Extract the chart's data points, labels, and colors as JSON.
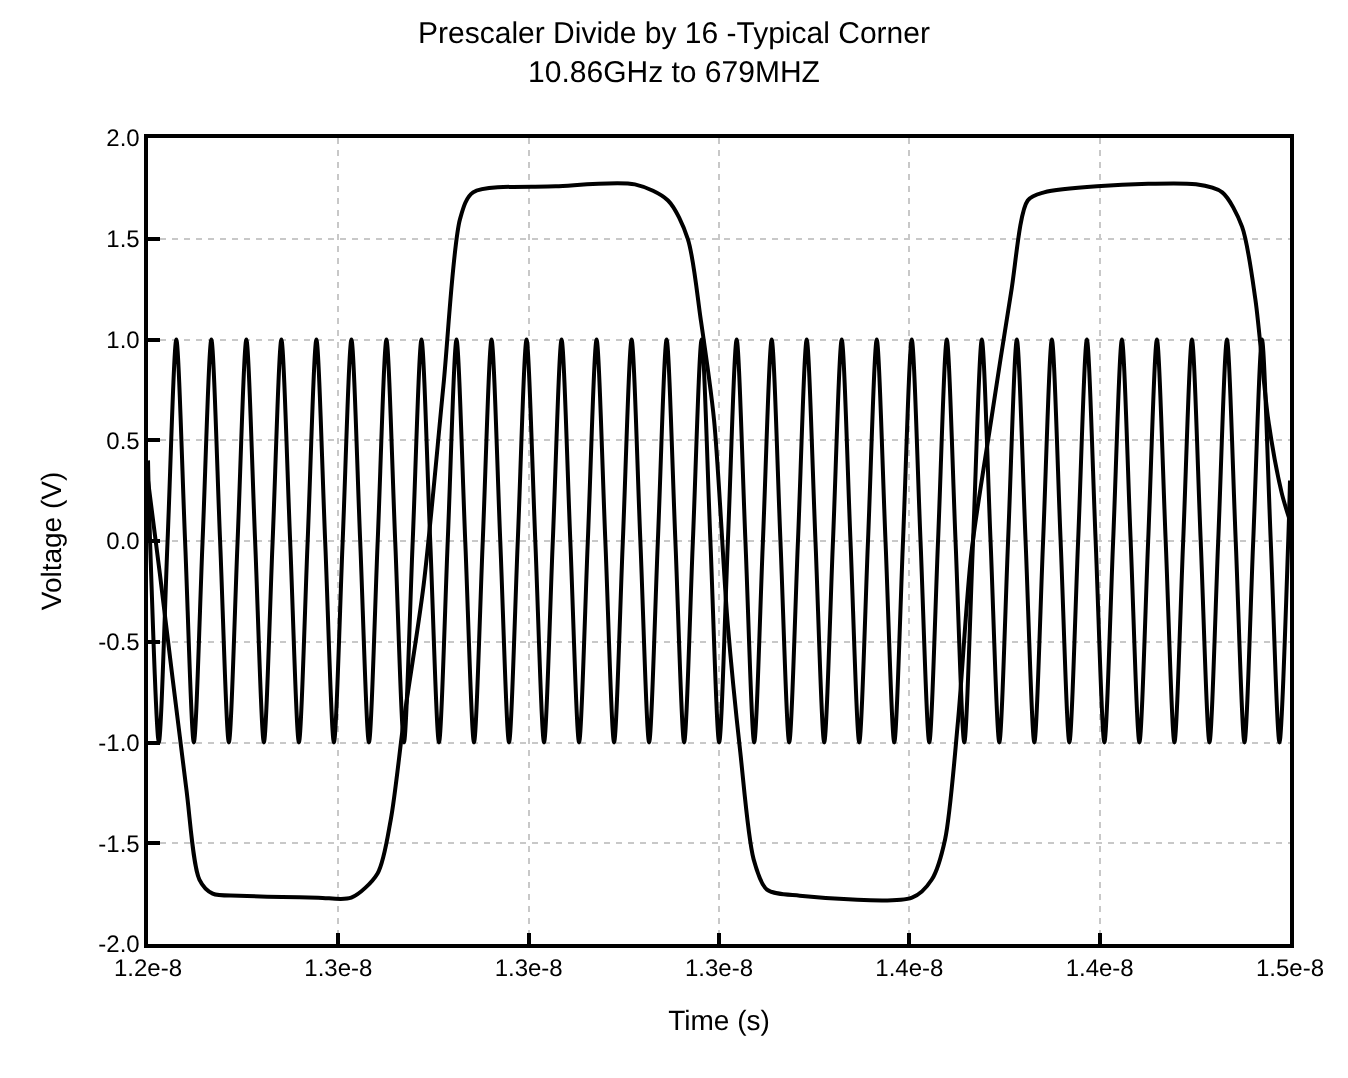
{
  "chart_data": {
    "type": "line",
    "title": "Prescaler Divide by 16 -Typical Corner",
    "subtitle": "10.86GHz to 679MHZ",
    "xlabel": "Time (s)",
    "ylabel": "Voltage (V)",
    "xlim": [
      1.2e-08,
      1.5e-08
    ],
    "xticks": [
      {
        "value": 1.2e-08,
        "label": "1.2e-8"
      },
      {
        "value": 1.25e-08,
        "label": "1.3e-8"
      },
      {
        "value": 1.3e-08,
        "label": "1.3e-8"
      },
      {
        "value": 1.35e-08,
        "label": "1.3e-8"
      },
      {
        "value": 1.4e-08,
        "label": "1.4e-8"
      },
      {
        "value": 1.45e-08,
        "label": "1.4e-8"
      },
      {
        "value": 1.5e-08,
        "label": "1.5e-8"
      }
    ],
    "ylim": [
      -2.0,
      2.0
    ],
    "yticks": [
      {
        "value": -2.0,
        "label": "-2.0"
      },
      {
        "value": -1.5,
        "label": "-1.5"
      },
      {
        "value": -1.0,
        "label": "-1.0"
      },
      {
        "value": -0.5,
        "label": "-0.5"
      },
      {
        "value": 0,
        "label": "0.0"
      },
      {
        "value": 0.5,
        "label": "0.5"
      },
      {
        "value": 1.0,
        "label": "1.0"
      },
      {
        "value": 1.5,
        "label": "1.5"
      },
      {
        "value": 2.0,
        "label": "2.0"
      }
    ],
    "grid": true,
    "marker": "none",
    "line_style": "solid",
    "series": [
      {
        "color": "#000000",
        "x": [
          1.2e-08,
          1.20054e-08,
          1.20284e-08,
          1.20514e-08,
          1.20744e-08,
          1.20974e-08,
          1.21204e-08,
          1.21434e-08,
          1.21664e-08,
          1.21894e-08,
          1.22124e-08,
          1.22354e-08,
          1.22584e-08,
          1.22814e-08,
          1.23044e-08,
          1.23274e-08,
          1.23504e-08,
          1.23734e-08,
          1.23964e-08,
          1.24194e-08,
          1.24424e-08,
          1.24654e-08,
          1.24884e-08,
          1.25114e-08,
          1.25344e-08,
          1.25574e-08,
          1.25804e-08,
          1.26034e-08,
          1.26264e-08,
          1.26494e-08,
          1.26724e-08,
          1.26954e-08,
          1.27184e-08,
          1.27414e-08,
          1.27644e-08,
          1.27874e-08,
          1.28104e-08,
          1.28334e-08,
          1.28564e-08,
          1.28794e-08,
          1.29024e-08,
          1.29254e-08,
          1.29484e-08,
          1.29714e-08,
          1.29944e-08,
          1.30174e-08,
          1.30404e-08,
          1.30634e-08,
          1.30864e-08,
          1.31094e-08,
          1.31324e-08,
          1.31554e-08,
          1.31784e-08,
          1.32014e-08,
          1.32244e-08,
          1.32474e-08,
          1.32704e-08,
          1.32934e-08,
          1.33164e-08,
          1.33394e-08,
          1.33624e-08,
          1.33854e-08,
          1.34084e-08,
          1.34314e-08,
          1.34544e-08,
          1.34774e-08,
          1.35004e-08,
          1.35234e-08,
          1.35464e-08,
          1.35694e-08,
          1.35924e-08,
          1.36154e-08,
          1.36384e-08,
          1.36614e-08,
          1.36844e-08,
          1.37074e-08,
          1.37304e-08,
          1.37534e-08,
          1.37764e-08,
          1.37994e-08,
          1.38224e-08,
          1.38454e-08,
          1.38684e-08,
          1.38914e-08,
          1.39144e-08,
          1.39374e-08,
          1.39604e-08,
          1.39834e-08,
          1.40064e-08,
          1.40294e-08,
          1.40524e-08,
          1.40754e-08,
          1.40984e-08,
          1.41214e-08,
          1.41444e-08,
          1.41674e-08,
          1.41904e-08,
          1.42134e-08,
          1.42364e-08,
          1.42594e-08,
          1.42824e-08,
          1.43054e-08,
          1.43284e-08,
          1.43514e-08,
          1.43744e-08,
          1.43974e-08,
          1.44204e-08,
          1.44434e-08,
          1.44664e-08,
          1.44894e-08,
          1.45124e-08,
          1.45354e-08,
          1.45584e-08,
          1.45814e-08,
          1.46044e-08,
          1.46274e-08,
          1.46504e-08,
          1.46734e-08,
          1.46964e-08,
          1.47194e-08,
          1.47424e-08,
          1.47654e-08,
          1.47884e-08,
          1.48114e-08,
          1.48344e-08,
          1.48574e-08,
          1.48804e-08,
          1.49034e-08,
          1.49264e-08,
          1.49494e-08,
          1.49724e-08,
          1.49954e-08,
          1.5e-08
        ],
        "values": [
          0.4,
          0,
          -1,
          0,
          1,
          0,
          -1,
          0,
          1,
          0,
          -1,
          0,
          1,
          0,
          -1,
          0,
          1,
          0,
          -1,
          0,
          1,
          0,
          -1,
          0,
          1,
          0,
          -1,
          0,
          1,
          0,
          -1,
          0,
          1,
          0,
          -1,
          0,
          1,
          0,
          -1,
          0,
          1,
          0,
          -1,
          0,
          1,
          0,
          -1,
          0,
          1,
          0,
          -1,
          0,
          1,
          0,
          -1,
          0,
          1,
          0,
          -1,
          0,
          1,
          0,
          -1,
          0,
          1,
          0,
          -1,
          0,
          1,
          0,
          -1,
          0,
          1,
          0,
          -1,
          0,
          1,
          0,
          -1,
          0,
          1,
          0,
          -1,
          0,
          1,
          0,
          -1,
          0,
          1,
          0,
          -1,
          0,
          1,
          0,
          -1,
          0,
          1,
          0,
          -1,
          0,
          1,
          0,
          -1,
          0,
          1,
          0,
          -1,
          0,
          1,
          0,
          -1,
          0,
          1,
          0,
          -1,
          0,
          1,
          0,
          -1,
          0,
          1,
          0,
          -1,
          0,
          1,
          0,
          -1,
          0,
          1,
          0,
          -1,
          0,
          0.3
        ]
      },
      {
        "color": "#000000",
        "x": [
          1.2e-08,
          1.2031e-08,
          1.21e-08,
          1.2135e-08,
          1.217e-08,
          1.2239e-08,
          1.2447e-08,
          1.2534e-08,
          1.2603e-08,
          1.2638e-08,
          1.2672e-08,
          1.2724e-08,
          1.2776e-08,
          1.282e-08,
          1.2854e-08,
          1.3071e-08,
          1.3279e-08,
          1.3366e-08,
          1.3418e-08,
          1.3452e-08,
          1.3487e-08,
          1.3522e-08,
          1.3556e-08,
          1.3591e-08,
          1.3626e-08,
          1.3712e-08,
          1.4007e-08,
          1.4059e-08,
          1.4094e-08,
          1.4128e-08,
          1.4163e-08,
          1.4215e-08,
          1.4267e-08,
          1.4311e-08,
          1.4354e-08,
          1.4493e-08,
          1.4753e-08,
          1.4822e-08,
          1.4874e-08,
          1.4909e-08,
          1.4943e-08,
          1.4978e-08,
          1.5e-08
        ],
        "values": [
          0.3,
          -0.16,
          -1.22,
          -1.68,
          -1.75,
          -1.76,
          -1.77,
          -1.77,
          -1.65,
          -1.38,
          -0.89,
          -0.22,
          0.77,
          1.6,
          1.73,
          1.76,
          1.77,
          1.69,
          1.5,
          1.1,
          0.6,
          -0.39,
          -1.05,
          -1.58,
          -1.73,
          -1.76,
          -1.77,
          -1.68,
          -1.48,
          -0.89,
          -0.06,
          0.6,
          1.23,
          1.69,
          1.73,
          1.76,
          1.77,
          1.73,
          1.56,
          1.2,
          0.6,
          0.24,
          0.1
        ]
      }
    ]
  }
}
